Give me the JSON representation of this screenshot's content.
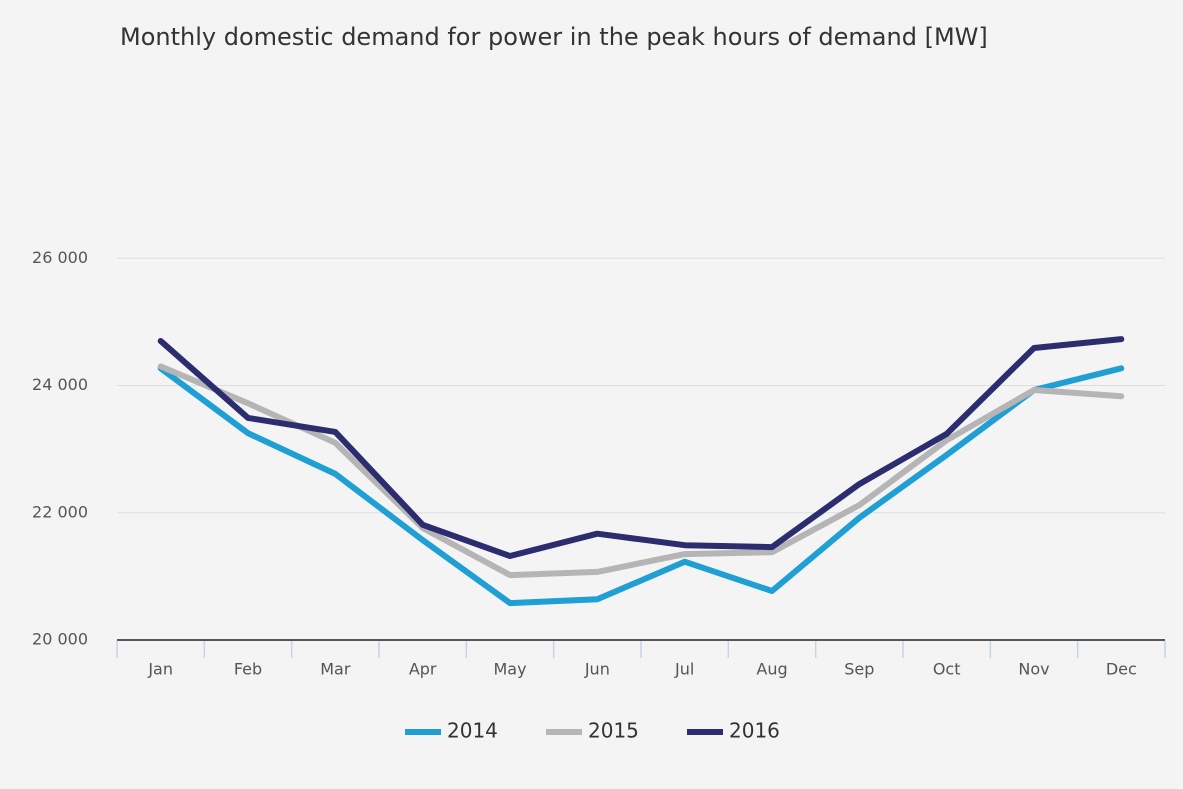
{
  "chart_data": {
    "type": "line",
    "title": "Monthly domestic demand for power in the peak hours of demand [MW]",
    "categories": [
      "Jan",
      "Feb",
      "Mar",
      "Apr",
      "May",
      "Jun",
      "Jul",
      "Aug",
      "Sep",
      "Oct",
      "Nov",
      "Dec"
    ],
    "series": [
      {
        "name": "2014",
        "color": "#1f9fd4",
        "values": [
          24270,
          23250,
          22610,
          21570,
          20580,
          20640,
          21230,
          20770,
          21920,
          22910,
          23930,
          24270
        ]
      },
      {
        "name": "2015",
        "color": "#b5b5b5",
        "values": [
          24300,
          23720,
          23100,
          21760,
          21020,
          21070,
          21350,
          21380,
          22120,
          23140,
          23930,
          23830
        ]
      },
      {
        "name": "2016",
        "color": "#2b2d6e",
        "values": [
          24700,
          23490,
          23270,
          21810,
          21320,
          21670,
          21490,
          21460,
          22450,
          23240,
          24590,
          24730
        ]
      }
    ],
    "ylim": [
      20000,
      28000
    ],
    "yticks": [
      {
        "value": 20000,
        "label": "20 000"
      },
      {
        "value": 22000,
        "label": "22 000"
      },
      {
        "value": 24000,
        "label": "24 000"
      },
      {
        "value": 26000,
        "label": "26 000"
      }
    ],
    "grid": true,
    "legend": "bottom"
  }
}
